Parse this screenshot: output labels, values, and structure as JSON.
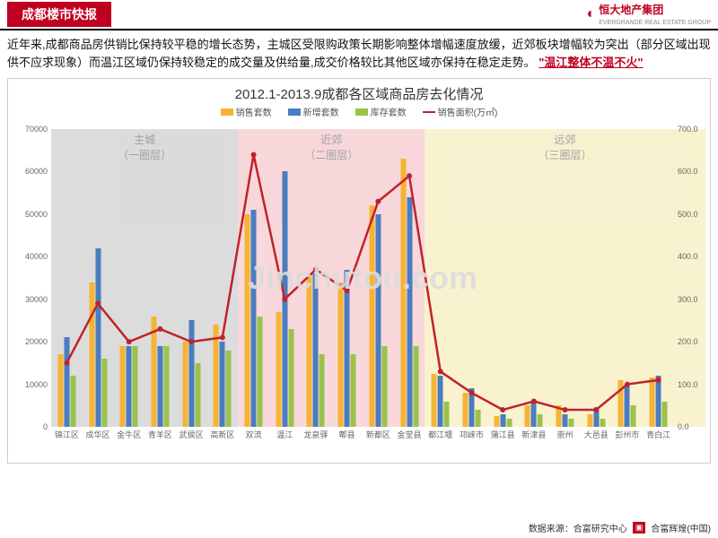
{
  "header": {
    "tag": "成都楼市快报",
    "company": "恒大地产集团",
    "company_en": "EVERGRANDE REAL ESTATE GROUP"
  },
  "paragraph": {
    "t1": "近年来,成都商品房供销比保持较平稳的增长态势，主城区受限购政策长期影响整体增幅速度放缓，近郊板块增幅较为突出（部分区域出现供不应求现象）而温江区域仍保持较稳定的成交量及供给量,成交价格较比其他区域亦保持在稳定走势。",
    "highlight": "\"温江整体不温不火\""
  },
  "chart": {
    "title": "2012.1-2013.9成都各区域商品房去化情况",
    "legend": [
      {
        "label": "销售套数",
        "type": "bar",
        "color": "#f6b334"
      },
      {
        "label": "新增套数",
        "type": "bar",
        "color": "#4a7dbf"
      },
      {
        "label": "库存套数",
        "type": "bar",
        "color": "#9ac24c"
      },
      {
        "label": "销售面积(万㎡)",
        "type": "line",
        "color": "#c0222b"
      }
    ],
    "y_left": {
      "min": 0,
      "max": 70000,
      "step": 10000
    },
    "y_right": {
      "min": 0,
      "max": 700,
      "step": 100,
      "decimals": 1
    },
    "zones": [
      {
        "label": "主城\n（一圈层）",
        "color": "#bfbfbf",
        "from": 0,
        "to": 6
      },
      {
        "label": "近郊\n（二圈层）",
        "color": "#f2b8bb",
        "from": 6,
        "to": 12
      },
      {
        "label": "远郊\n（三圈层）",
        "color": "#f3e7a8",
        "from": 12,
        "to": 21
      }
    ],
    "categories": [
      "锦江区",
      "成华区",
      "金牛区",
      "青羊区",
      "武侯区",
      "高新区",
      "双流",
      "温江",
      "龙泉驿",
      "郫县",
      "新都区",
      "金堂县",
      "都江堰",
      "邛崃市",
      "蒲江县",
      "新津县",
      "崇州",
      "大邑县",
      "彭州市",
      "青白江"
    ],
    "series": {
      "sales": [
        17000,
        34000,
        19000,
        26000,
        20000,
        24000,
        50000,
        27000,
        36000,
        34000,
        52000,
        63000,
        12500,
        8000,
        2500,
        5000,
        5000,
        3000,
        11000,
        11500
      ],
      "new": [
        21000,
        42000,
        19000,
        19000,
        25000,
        20000,
        51000,
        60000,
        36000,
        37000,
        50000,
        54000,
        12000,
        9000,
        3000,
        6000,
        3000,
        4000,
        10000,
        12000
      ],
      "stock": [
        12000,
        16000,
        19000,
        19000,
        15000,
        18000,
        26000,
        23000,
        17000,
        17000,
        19000,
        19000,
        6000,
        4000,
        2000,
        3000,
        2000,
        2000,
        5000,
        6000
      ],
      "area": [
        150,
        290,
        200,
        230,
        200,
        210,
        640,
        300,
        370,
        320,
        530,
        590,
        130,
        80,
        40,
        60,
        40,
        40,
        100,
        110
      ]
    },
    "colors": {
      "sales": "#f6b334",
      "new": "#4a7dbf",
      "stock": "#9ac24c",
      "line": "#c0222b"
    }
  },
  "footer": {
    "source": "数据来源：合富研究中心",
    "brand": "合富辉煌(中国)"
  },
  "watermark": "Jinchutou.com"
}
